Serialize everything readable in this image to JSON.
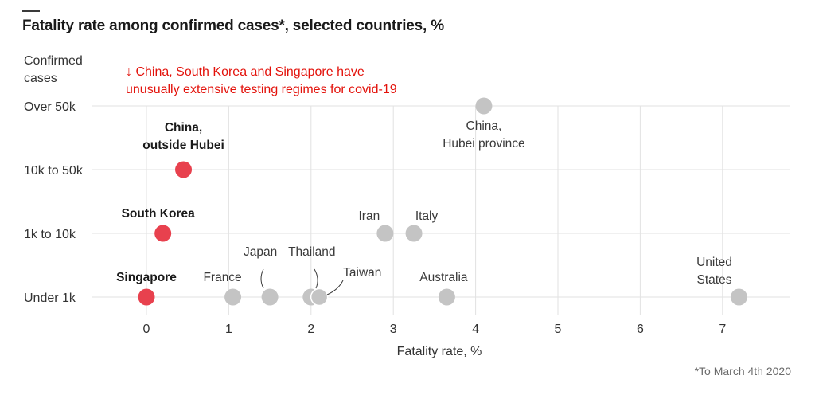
{
  "chart_data": {
    "type": "scatter",
    "title": "Fatality rate among confirmed cases*, selected countries, %",
    "ylabel": "Confirmed cases",
    "xlabel": "Fatality rate, %",
    "xlim": [
      -0.6,
      7.85
    ],
    "x_ticks": [
      0,
      1,
      2,
      3,
      4,
      5,
      6,
      7
    ],
    "y_categories": [
      "Over 50k",
      "10k to 50k",
      "1k to 10k",
      "Under 1k"
    ],
    "grid": true,
    "annotation": "↓ China, South Korea and Singapore have unusually extensive testing regimes for covid-19",
    "footnote": "*To March 4th 2020",
    "colors": {
      "highlight": "#e8414e",
      "default": "#c4c4c4",
      "annotation": "#e3120b",
      "grid": "#e2e2e2"
    },
    "points": [
      {
        "name": "China, Hubei province",
        "label_lines": [
          "China,",
          "Hubei province"
        ],
        "x": 4.1,
        "category": "Over 50k",
        "highlight": false,
        "label_pos": "below"
      },
      {
        "name": "China, outside Hubei",
        "label_lines": [
          "China,",
          "outside Hubei"
        ],
        "x": 0.45,
        "category": "10k to 50k",
        "highlight": true,
        "label_pos": "above"
      },
      {
        "name": "South Korea",
        "label_lines": [
          "South Korea"
        ],
        "x": 0.2,
        "category": "1k to 10k",
        "highlight": true,
        "label_pos": "above"
      },
      {
        "name": "Iran",
        "label_lines": [
          "Iran"
        ],
        "x": 2.9,
        "category": "1k to 10k",
        "highlight": false,
        "label_pos": "above-left"
      },
      {
        "name": "Italy",
        "label_lines": [
          "Italy"
        ],
        "x": 3.25,
        "category": "1k to 10k",
        "highlight": false,
        "label_pos": "above-right"
      },
      {
        "name": "Singapore",
        "label_lines": [
          "Singapore"
        ],
        "x": 0.0,
        "category": "Under 1k",
        "highlight": true,
        "label_pos": "above"
      },
      {
        "name": "France",
        "label_lines": [
          "France"
        ],
        "x": 1.05,
        "category": "Under 1k",
        "highlight": false,
        "label_pos": "above-left"
      },
      {
        "name": "Japan",
        "label_lines": [
          "Japan"
        ],
        "x": 1.5,
        "category": "Under 1k",
        "highlight": false,
        "label_pos": "callout"
      },
      {
        "name": "Thailand",
        "label_lines": [
          "Thailand"
        ],
        "x": 2.0,
        "category": "Under 1k",
        "highlight": false,
        "label_pos": "callout"
      },
      {
        "name": "Taiwan",
        "label_lines": [
          "Taiwan"
        ],
        "x": 2.1,
        "category": "Under 1k",
        "highlight": false,
        "label_pos": "callout"
      },
      {
        "name": "Australia",
        "label_lines": [
          "Australia"
        ],
        "x": 3.65,
        "category": "Under 1k",
        "highlight": false,
        "label_pos": "above"
      },
      {
        "name": "United States",
        "label_lines": [
          "United",
          "States"
        ],
        "x": 7.2,
        "category": "Under 1k",
        "highlight": false,
        "label_pos": "above-left"
      }
    ]
  }
}
